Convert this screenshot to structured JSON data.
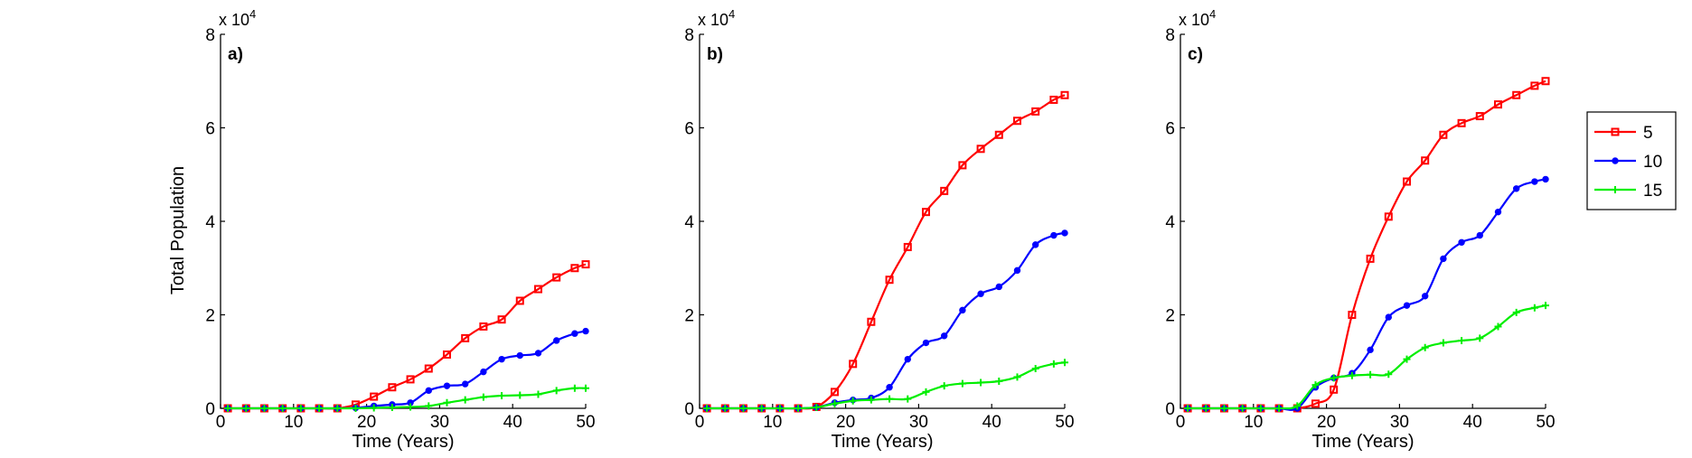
{
  "chart_data": [
    {
      "type": "line",
      "panel_label": "a)",
      "exponent_label": "x 10",
      "exponent_power": "4",
      "ylabel": "Total Population",
      "xlabel": "Time (Years)",
      "xlim": [
        0,
        50
      ],
      "ylim": [
        0,
        80000
      ],
      "xticks": [
        0,
        10,
        20,
        30,
        40,
        50
      ],
      "xtick_labels": [
        "0",
        "10",
        "20",
        "30",
        "40",
        "50"
      ],
      "yticks": [
        0,
        20000,
        40000,
        60000,
        80000
      ],
      "ytick_labels": [
        "0",
        "2",
        "4",
        "6",
        "8"
      ],
      "legend": null,
      "x": [
        1,
        3.5,
        6,
        8.5,
        11,
        13.5,
        16,
        18.5,
        21,
        23.5,
        26,
        28.5,
        31,
        33.5,
        36,
        38.5,
        41,
        43.5,
        46,
        48.5,
        50
      ],
      "series": [
        {
          "name": "5",
          "color": "#ff0000",
          "marker": "square",
          "values": [
            0,
            0,
            0,
            0,
            0,
            0,
            0,
            800,
            2500,
            4500,
            6200,
            8500,
            11500,
            15000,
            17500,
            19000,
            23000,
            25500,
            28000,
            30000,
            30800
          ]
        },
        {
          "name": "10",
          "color": "#0000ff",
          "marker": "circle",
          "values": [
            0,
            0,
            0,
            0,
            0,
            0,
            0,
            100,
            500,
            800,
            1200,
            3800,
            4800,
            5200,
            7800,
            10500,
            11300,
            11800,
            14500,
            16000,
            16500
          ]
        },
        {
          "name": "15",
          "color": "#00ee00",
          "marker": "plus",
          "values": [
            0,
            0,
            0,
            0,
            0,
            0,
            0,
            0,
            100,
            200,
            300,
            500,
            1200,
            1800,
            2400,
            2700,
            2800,
            3000,
            3800,
            4300,
            4300
          ]
        }
      ]
    },
    {
      "type": "line",
      "panel_label": "b)",
      "exponent_label": "x 10",
      "exponent_power": "4",
      "ylabel": "",
      "xlabel": "Time (Years)",
      "xlim": [
        0,
        50
      ],
      "ylim": [
        0,
        80000
      ],
      "xticks": [
        0,
        10,
        20,
        30,
        40,
        50
      ],
      "xtick_labels": [
        "0",
        "10",
        "20",
        "30",
        "40",
        "50"
      ],
      "yticks": [
        0,
        20000,
        40000,
        60000,
        80000
      ],
      "ytick_labels": [
        "0",
        "2",
        "4",
        "6",
        "8"
      ],
      "legend": null,
      "x": [
        1,
        3.5,
        6,
        8.5,
        11,
        13.5,
        16,
        18.5,
        21,
        23.5,
        26,
        28.5,
        31,
        33.5,
        36,
        38.5,
        41,
        43.5,
        46,
        48.5,
        50
      ],
      "series": [
        {
          "name": "5",
          "color": "#ff0000",
          "marker": "square",
          "values": [
            0,
            0,
            0,
            0,
            0,
            0,
            300,
            3500,
            9500,
            18500,
            27500,
            34500,
            42000,
            46500,
            52000,
            55500,
            58500,
            61500,
            63500,
            66000,
            67000
          ]
        },
        {
          "name": "10",
          "color": "#0000ff",
          "marker": "circle",
          "values": [
            0,
            0,
            0,
            0,
            0,
            0,
            200,
            1200,
            1800,
            2200,
            4500,
            10500,
            14000,
            15500,
            21000,
            24500,
            26000,
            29500,
            35000,
            37000,
            37500
          ]
        },
        {
          "name": "15",
          "color": "#00ee00",
          "marker": "plus",
          "values": [
            0,
            0,
            0,
            0,
            0,
            0,
            200,
            1000,
            1600,
            1800,
            2000,
            2000,
            3500,
            4800,
            5300,
            5500,
            5800,
            6700,
            8500,
            9500,
            9800
          ]
        }
      ]
    },
    {
      "type": "line",
      "panel_label": "c)",
      "exponent_label": "x 10",
      "exponent_power": "4",
      "ylabel": "",
      "xlabel": "Time (Years)",
      "xlim": [
        0,
        50
      ],
      "ylim": [
        0,
        80000
      ],
      "xticks": [
        0,
        10,
        20,
        30,
        40,
        50
      ],
      "xtick_labels": [
        "0",
        "10",
        "20",
        "30",
        "40",
        "50"
      ],
      "yticks": [
        0,
        20000,
        40000,
        60000,
        80000
      ],
      "ytick_labels": [
        "0",
        "2",
        "4",
        "6",
        "8"
      ],
      "legend": {
        "placement": "outside-right-top",
        "entries": [
          "5",
          "10",
          "15"
        ]
      },
      "x": [
        1,
        3.5,
        6,
        8.5,
        11,
        13.5,
        16,
        18.5,
        21,
        23.5,
        26,
        28.5,
        31,
        33.5,
        36,
        38.5,
        41,
        43.5,
        46,
        48.5,
        50
      ],
      "series": [
        {
          "name": "5",
          "color": "#ff0000",
          "marker": "square",
          "values": [
            0,
            0,
            0,
            0,
            0,
            0,
            0,
            1000,
            4000,
            20000,
            32000,
            41000,
            48500,
            53000,
            58500,
            61000,
            62500,
            65000,
            67000,
            69000,
            70000
          ]
        },
        {
          "name": "10",
          "color": "#0000ff",
          "marker": "circle",
          "values": [
            0,
            0,
            0,
            0,
            0,
            0,
            0,
            4500,
            6500,
            7500,
            12500,
            19500,
            22000,
            24000,
            32000,
            35500,
            37000,
            42000,
            47000,
            48500,
            49000
          ]
        },
        {
          "name": "15",
          "color": "#00ee00",
          "marker": "plus",
          "values": [
            0,
            0,
            0,
            0,
            0,
            0,
            500,
            5000,
            6500,
            7000,
            7200,
            7300,
            10500,
            13000,
            14000,
            14500,
            15000,
            17500,
            20500,
            21500,
            22000
          ]
        }
      ]
    }
  ]
}
